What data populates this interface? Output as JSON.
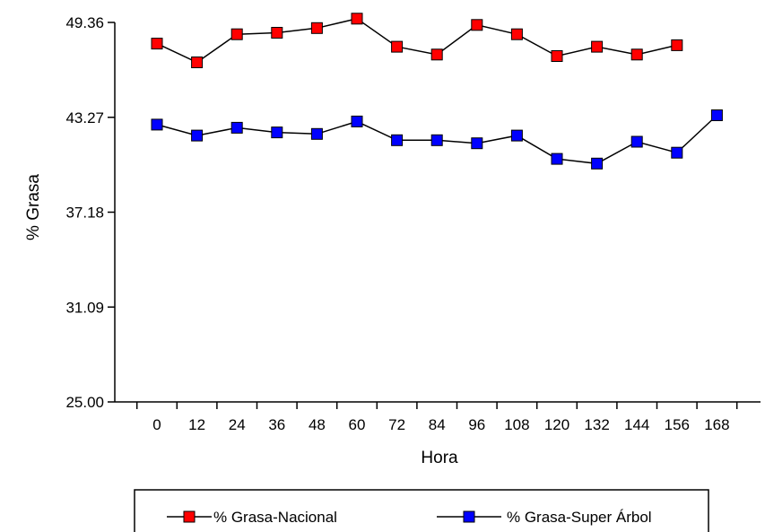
{
  "chart_data": {
    "type": "line",
    "title": "",
    "xlabel": "Hora",
    "ylabel": "% Grasa",
    "x": [
      "0",
      "12",
      "24",
      "36",
      "48",
      "60",
      "72",
      "84",
      "96",
      "108",
      "120",
      "132",
      "144",
      "156",
      "168"
    ],
    "yticks": [
      "25.00",
      "31.09",
      "37.18",
      "43.27",
      "49.36"
    ],
    "ylim": [
      25.0,
      49.36
    ],
    "grid": false,
    "legend_position": "bottom",
    "series": [
      {
        "name": "% Grasa-Nacional",
        "color": "#ff0000",
        "values": [
          48.0,
          46.8,
          48.6,
          48.7,
          49.0,
          49.6,
          47.8,
          47.3,
          49.2,
          48.6,
          47.2,
          47.8,
          47.3,
          47.9,
          null
        ]
      },
      {
        "name": "% Grasa-Super Árbol",
        "color": "#0000ff",
        "values": [
          42.8,
          42.1,
          42.6,
          42.3,
          42.2,
          43.0,
          41.8,
          41.8,
          41.6,
          42.1,
          40.6,
          40.3,
          41.7,
          41.0,
          43.4
        ]
      }
    ]
  }
}
